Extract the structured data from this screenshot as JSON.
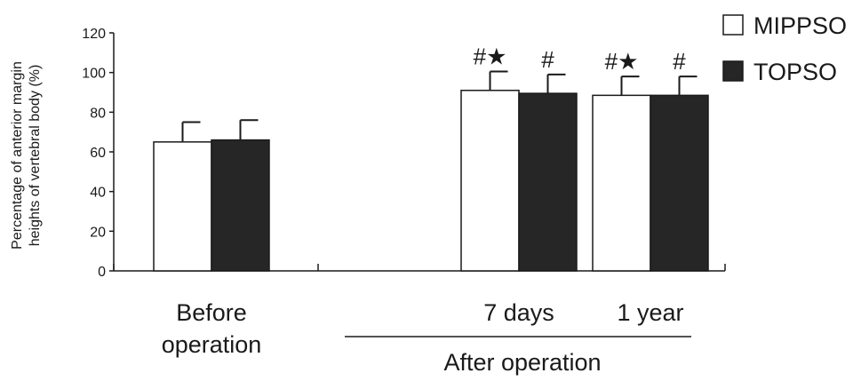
{
  "chart_data": {
    "type": "bar",
    "ylabel_lines": [
      "Percentage of anterior margin",
      "heights of vertebral body (%)"
    ],
    "ylim": [
      0,
      120
    ],
    "yticks": [
      0,
      20,
      40,
      60,
      80,
      100,
      120
    ],
    "categories": [
      "Before operation",
      "7 days",
      "1 year"
    ],
    "category_label_lines": [
      [
        "Before",
        "operation"
      ],
      [
        "7 days"
      ],
      [
        "1 year"
      ]
    ],
    "group_label": "After operation",
    "series": [
      {
        "name": "MIPPSO",
        "fill": "#ffffff",
        "values": [
          65,
          91,
          88.5
        ],
        "errors": [
          10,
          9.5,
          9.5
        ],
        "annotations": [
          "",
          "#★",
          "#★"
        ]
      },
      {
        "name": "TOPSO",
        "fill": "#262626",
        "values": [
          66,
          89.5,
          88.5
        ],
        "errors": [
          10,
          9.5,
          9.5
        ],
        "annotations": [
          "",
          "#",
          "#"
        ]
      }
    ],
    "legend_position": "top-right",
    "grid": false
  }
}
